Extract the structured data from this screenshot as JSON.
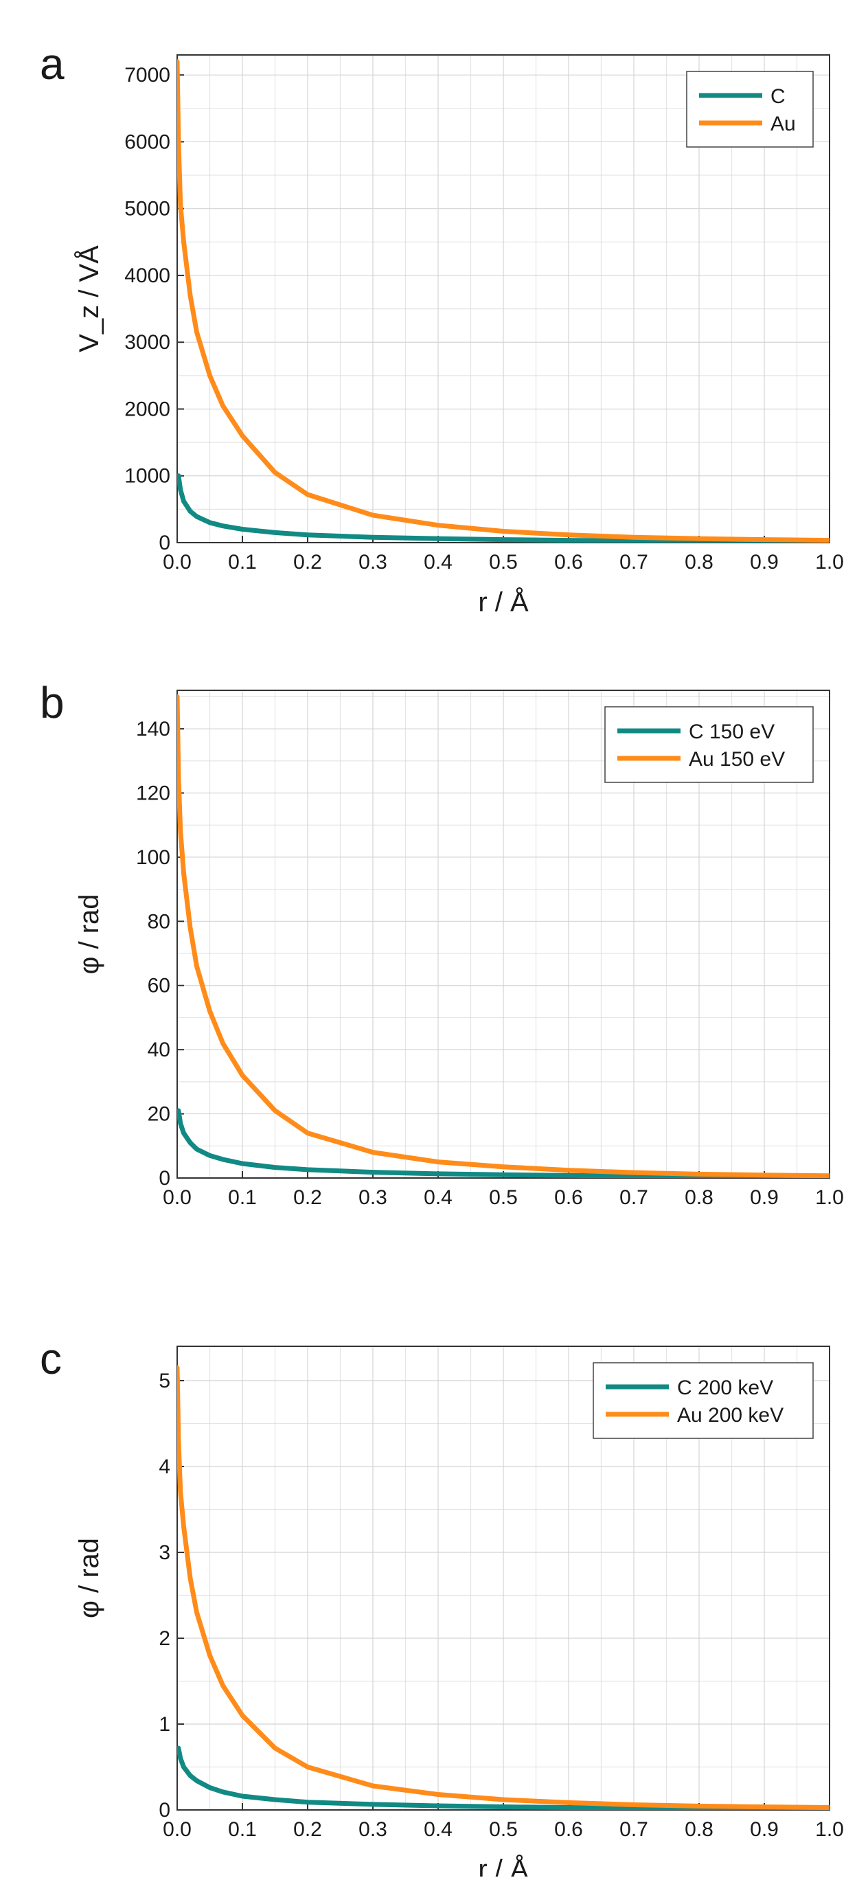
{
  "chart_data": [
    {
      "type": "line",
      "panel_label": "a",
      "title": "",
      "xlabel": "r / Å",
      "ylabel": "V_z / VÅ",
      "xlim": [
        0,
        1.0
      ],
      "ylim": [
        0,
        7300
      ],
      "xticks": [
        0.0,
        0.1,
        0.2,
        0.3,
        0.4,
        0.5,
        0.6,
        0.7,
        0.8,
        0.9,
        1.0
      ],
      "xtick_labels": [
        "0.0",
        "0.1",
        "0.2",
        "0.3",
        "0.4",
        "0.5",
        "0.6",
        "0.7",
        "0.8",
        "0.9",
        "1.0"
      ],
      "yticks": [
        0,
        1000,
        2000,
        3000,
        4000,
        5000,
        6000,
        7000
      ],
      "ytick_labels": [
        "0",
        "1000",
        "2000",
        "3000",
        "4000",
        "5000",
        "6000",
        "7000"
      ],
      "grid": true,
      "legend_position": "top-right",
      "series": [
        {
          "name": "C",
          "color": "#118a84",
          "x": [
            0.002,
            0.005,
            0.01,
            0.02,
            0.03,
            0.05,
            0.07,
            0.1,
            0.15,
            0.2,
            0.3,
            0.4,
            0.5,
            0.6,
            0.7,
            0.8,
            0.9,
            1.0
          ],
          "y": [
            1000,
            790,
            620,
            470,
            390,
            300,
            250,
            200,
            150,
            115,
            80,
            60,
            45,
            35,
            28,
            22,
            18,
            15
          ]
        },
        {
          "name": "Au",
          "color": "#ff8c1a",
          "x": [
            0.0,
            0.002,
            0.005,
            0.01,
            0.02,
            0.03,
            0.05,
            0.07,
            0.1,
            0.15,
            0.2,
            0.3,
            0.4,
            0.5,
            0.6,
            0.7,
            0.8,
            0.9,
            1.0
          ],
          "y": [
            7200,
            6000,
            5050,
            4500,
            3700,
            3150,
            2500,
            2050,
            1600,
            1050,
            720,
            410,
            260,
            170,
            115,
            80,
            60,
            45,
            35
          ]
        }
      ]
    },
    {
      "type": "line",
      "panel_label": "b",
      "title": "",
      "xlabel": "",
      "ylabel": "φ / rad",
      "xlim": [
        0,
        1.0
      ],
      "ylim": [
        0,
        152
      ],
      "xticks": [
        0.0,
        0.1,
        0.2,
        0.3,
        0.4,
        0.5,
        0.6,
        0.7,
        0.8,
        0.9,
        1.0
      ],
      "xtick_labels": [
        "0.0",
        "0.1",
        "0.2",
        "0.3",
        "0.4",
        "0.5",
        "0.6",
        "0.7",
        "0.8",
        "0.9",
        "1.0"
      ],
      "yticks": [
        0,
        20,
        40,
        60,
        80,
        100,
        120,
        140
      ],
      "ytick_labels": [
        "0",
        "20",
        "40",
        "60",
        "80",
        "100",
        "120",
        "140"
      ],
      "grid": true,
      "legend_position": "top-right",
      "series": [
        {
          "name": "C 150 eV",
          "color": "#118a84",
          "x": [
            0.002,
            0.005,
            0.01,
            0.02,
            0.03,
            0.05,
            0.07,
            0.1,
            0.15,
            0.2,
            0.3,
            0.4,
            0.5,
            0.6,
            0.7,
            0.8,
            0.9,
            1.0
          ],
          "y": [
            21,
            17,
            14,
            11,
            9,
            7,
            5.8,
            4.5,
            3.3,
            2.6,
            1.8,
            1.3,
            1.0,
            0.8,
            0.6,
            0.5,
            0.4,
            0.3
          ]
        },
        {
          "name": "Au 150 eV",
          "color": "#ff8c1a",
          "x": [
            0.0,
            0.002,
            0.005,
            0.01,
            0.02,
            0.03,
            0.05,
            0.07,
            0.1,
            0.15,
            0.2,
            0.3,
            0.4,
            0.5,
            0.6,
            0.7,
            0.8,
            0.9,
            1.0
          ],
          "y": [
            150,
            125,
            108,
            95,
            78,
            66,
            52,
            42,
            32,
            21,
            14,
            8,
            5,
            3.5,
            2.4,
            1.7,
            1.2,
            0.9,
            0.7
          ]
        }
      ]
    },
    {
      "type": "line",
      "panel_label": "c",
      "title": "",
      "xlabel": "r / Å",
      "ylabel": "φ / rad",
      "xlim": [
        0,
        1.0
      ],
      "ylim": [
        0,
        5.4
      ],
      "xticks": [
        0.0,
        0.1,
        0.2,
        0.3,
        0.4,
        0.5,
        0.6,
        0.7,
        0.8,
        0.9,
        1.0
      ],
      "xtick_labels": [
        "0.0",
        "0.1",
        "0.2",
        "0.3",
        "0.4",
        "0.5",
        "0.6",
        "0.7",
        "0.8",
        "0.9",
        "1.0"
      ],
      "yticks": [
        0,
        1,
        2,
        3,
        4,
        5
      ],
      "ytick_labels": [
        "0",
        "1",
        "2",
        "3",
        "4",
        "5"
      ],
      "grid": true,
      "legend_position": "top-right",
      "series": [
        {
          "name": "C 200 keV",
          "color": "#118a84",
          "x": [
            0.002,
            0.005,
            0.01,
            0.02,
            0.03,
            0.05,
            0.07,
            0.1,
            0.15,
            0.2,
            0.3,
            0.4,
            0.5,
            0.6,
            0.7,
            0.8,
            0.9,
            1.0
          ],
          "y": [
            0.72,
            0.6,
            0.5,
            0.4,
            0.34,
            0.26,
            0.21,
            0.16,
            0.12,
            0.09,
            0.065,
            0.048,
            0.036,
            0.028,
            0.022,
            0.018,
            0.015,
            0.012
          ]
        },
        {
          "name": "Au 200 keV",
          "color": "#ff8c1a",
          "x": [
            0.0,
            0.002,
            0.005,
            0.01,
            0.02,
            0.03,
            0.05,
            0.07,
            0.1,
            0.15,
            0.2,
            0.3,
            0.4,
            0.5,
            0.6,
            0.7,
            0.8,
            0.9,
            1.0
          ],
          "y": [
            5.15,
            4.3,
            3.7,
            3.3,
            2.7,
            2.3,
            1.8,
            1.45,
            1.1,
            0.72,
            0.5,
            0.28,
            0.18,
            0.12,
            0.085,
            0.06,
            0.045,
            0.035,
            0.028
          ]
        }
      ]
    }
  ]
}
